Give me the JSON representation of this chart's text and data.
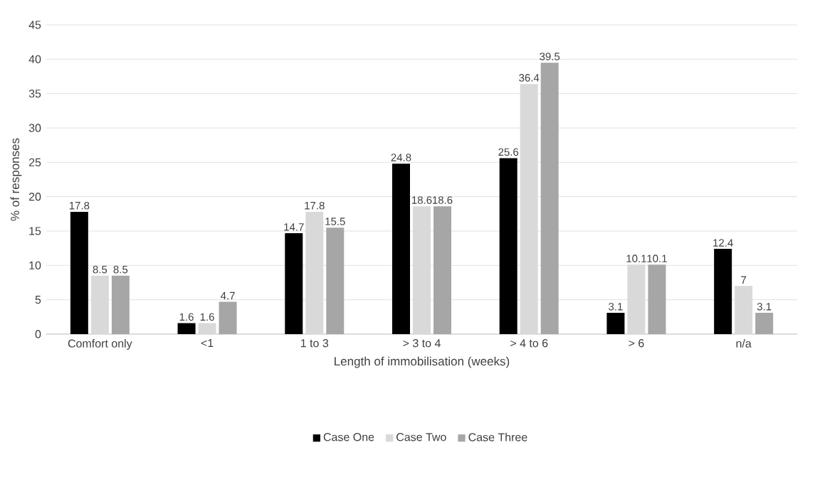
{
  "chart_data": {
    "type": "bar",
    "xlabel": "Length of immobilisation (weeks)",
    "ylabel": "% of responses",
    "categories": [
      "Comfort only",
      "<1",
      "1 to 3",
      "> 3 to 4",
      "> 4 to 6",
      "> 6",
      "n/a"
    ],
    "series": [
      {
        "name": "Case One",
        "color": "#000000",
        "values": [
          17.8,
          1.6,
          14.7,
          24.8,
          25.6,
          3.1,
          12.4
        ]
      },
      {
        "name": "Case Two",
        "color": "#d9d9d9",
        "values": [
          8.5,
          1.6,
          17.8,
          18.6,
          36.4,
          10.1,
          7
        ]
      },
      {
        "name": "Case Three",
        "color": "#a6a6a6",
        "values": [
          8.5,
          4.7,
          15.5,
          18.6,
          39.5,
          10.1,
          3.1
        ]
      }
    ],
    "ylim": [
      0,
      45
    ],
    "yticks": [
      0,
      5,
      10,
      15,
      20,
      25,
      30,
      35,
      40,
      45
    ],
    "grid": "y",
    "legend": "bottom",
    "data_labels": true
  }
}
